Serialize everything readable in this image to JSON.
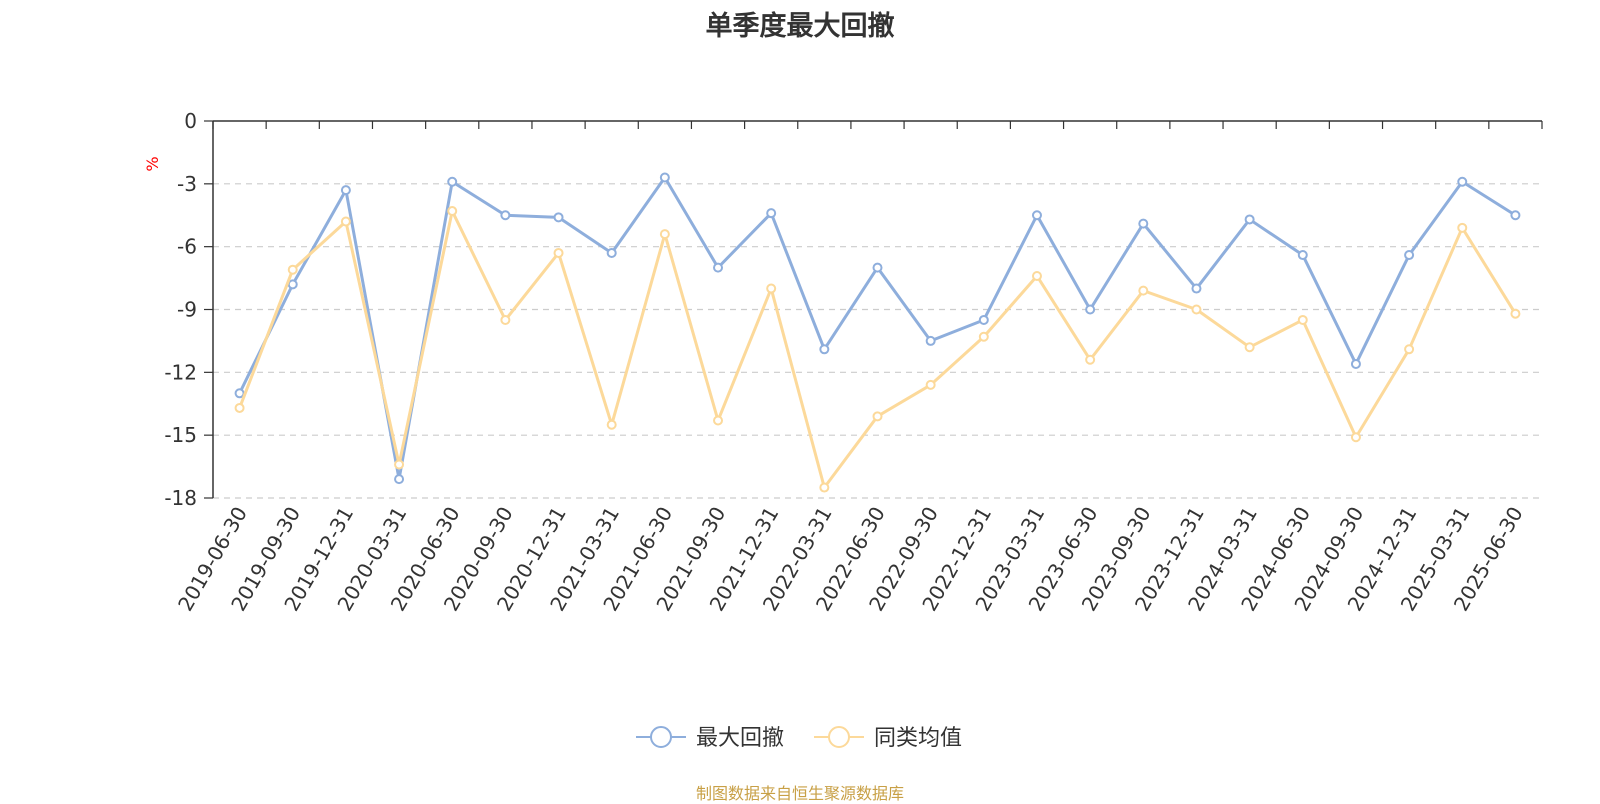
{
  "chart_data": {
    "type": "line",
    "title": "单季度最大回撤",
    "ylabel": "%",
    "ylim": [
      -18,
      0
    ],
    "yticks": [
      0,
      -3,
      -6,
      -9,
      -12,
      -15,
      -18
    ],
    "grid": true,
    "legend_position": "bottom-center",
    "categories": [
      "2019-06-30",
      "2019-09-30",
      "2019-12-31",
      "2020-03-31",
      "2020-06-30",
      "2020-09-30",
      "2020-12-31",
      "2021-03-31",
      "2021-06-30",
      "2021-09-30",
      "2021-12-31",
      "2022-03-31",
      "2022-06-30",
      "2022-09-30",
      "2022-12-31",
      "2023-03-31",
      "2023-06-30",
      "2023-09-30",
      "2023-12-31",
      "2024-03-31",
      "2024-06-30",
      "2024-09-30",
      "2024-12-31",
      "2025-03-31",
      "2025-06-30"
    ],
    "series": [
      {
        "name": "最大回撤",
        "color": "#8eaedc",
        "values": [
          -13.0,
          -7.8,
          -3.3,
          -17.1,
          -2.9,
          -4.5,
          -4.6,
          -6.3,
          -2.7,
          -7.0,
          -4.4,
          -10.9,
          -7.0,
          -10.5,
          -9.5,
          -4.5,
          -9.0,
          -4.9,
          -8.0,
          -4.7,
          -6.4,
          -11.6,
          -6.4,
          -2.9,
          -4.5
        ]
      },
      {
        "name": "同类均值",
        "color": "#fcd99a",
        "values": [
          -13.7,
          -7.1,
          -4.8,
          -16.4,
          -4.3,
          -9.5,
          -6.3,
          -14.5,
          -5.4,
          -14.3,
          -8.0,
          -17.5,
          -14.1,
          -12.6,
          -10.3,
          -7.4,
          -11.4,
          -8.1,
          -9.0,
          -10.8,
          -9.5,
          -15.1,
          -10.9,
          -5.1,
          -9.2
        ]
      }
    ]
  },
  "source_note": "制图数据来自恒生聚源数据库"
}
